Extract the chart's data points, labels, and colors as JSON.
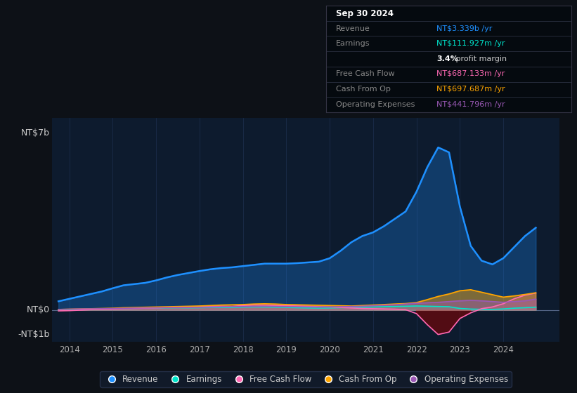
{
  "bg_color": "#0d1117",
  "plot_bg_color": "#0d1b2e",
  "grid_color": "#1e3050",
  "title_label": "NT$7b",
  "zero_label": "NT$0",
  "neg_label": "-NT$1b",
  "revenue_color": "#1e90ff",
  "earnings_color": "#00e5cc",
  "free_cash_flow_color": "#ff69b4",
  "cash_from_op_color": "#ffa500",
  "operating_expenses_color": "#9b59b6",
  "ylim": [
    -1.3,
    7.8
  ],
  "xlim": [
    2013.6,
    2025.3
  ],
  "tooltip_date": "Sep 30 2024",
  "tooltip_revenue": "NT$3.339b",
  "tooltip_earnings": "NT$111.927m",
  "tooltip_profit_margin": "3.4%",
  "tooltip_fcf": "NT$687.133m",
  "tooltip_cash_from_op": "NT$697.687m",
  "tooltip_op_expenses": "NT$441.796m",
  "x_ticks": [
    2014,
    2015,
    2016,
    2017,
    2018,
    2019,
    2020,
    2021,
    2022,
    2023,
    2024
  ]
}
